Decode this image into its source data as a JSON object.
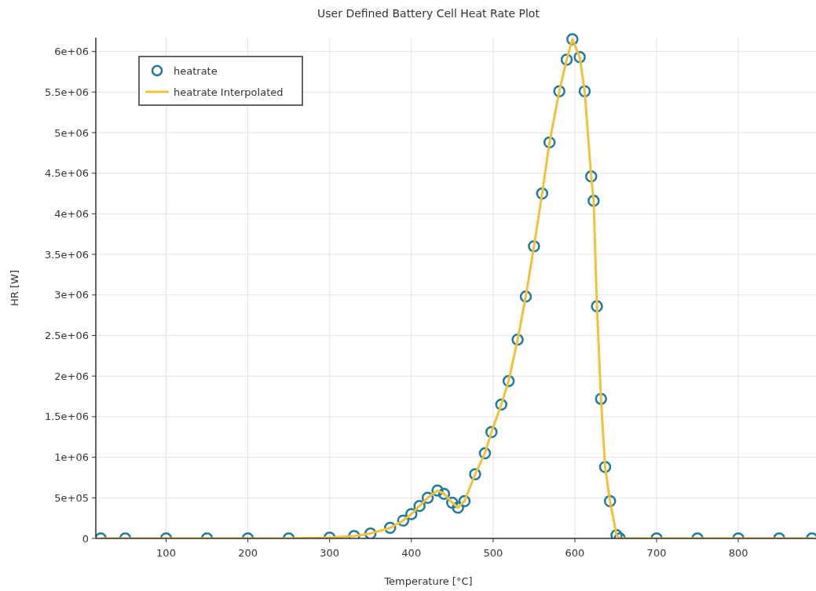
{
  "chart_data": {
    "type": "scatter",
    "title": "User Defined Battery Cell Heat Rate Plot",
    "xlabel": "Temperature [°C]",
    "ylabel": "HR [W]",
    "x": [
      20,
      50,
      100,
      150,
      200,
      250,
      300,
      330,
      350,
      374,
      390,
      400,
      410,
      420,
      432,
      440,
      450,
      457,
      465,
      478,
      490,
      498,
      510,
      519,
      530,
      540,
      550,
      560,
      569,
      581,
      590,
      597,
      606,
      612,
      620,
      623,
      627,
      632,
      637,
      643,
      651,
      655,
      700,
      750,
      800,
      850,
      890
    ],
    "series": [
      {
        "name": "heatrate",
        "marker": "circle",
        "color": "#1f7a9c",
        "values": [
          0,
          0,
          0,
          0,
          0,
          0,
          10000,
          30000,
          60000,
          130000,
          220000,
          300000,
          400000,
          500000,
          590000,
          550000,
          440000,
          380000,
          460000,
          790000,
          1050000,
          1310000,
          1650000,
          1940000,
          2450000,
          2980000,
          3600000,
          4250000,
          4880000,
          5510000,
          5900000,
          6150000,
          5930000,
          5510000,
          4460000,
          4160000,
          2860000,
          1720000,
          880000,
          460000,
          40000,
          0,
          0,
          0,
          0,
          0,
          0
        ]
      },
      {
        "name": "heatrate Interpolated",
        "type": "line",
        "line_style": "solid",
        "color": "#f0c23c",
        "values": [
          0,
          0,
          0,
          0,
          0,
          0,
          10000,
          30000,
          60000,
          130000,
          220000,
          300000,
          400000,
          500000,
          590000,
          550000,
          440000,
          380000,
          460000,
          790000,
          1050000,
          1310000,
          1650000,
          1940000,
          2450000,
          2980000,
          3600000,
          4250000,
          4880000,
          5510000,
          5900000,
          6150000,
          5930000,
          5510000,
          4460000,
          4160000,
          2860000,
          1720000,
          880000,
          460000,
          40000,
          0,
          0,
          0,
          0,
          0,
          0
        ]
      }
    ],
    "xlim": [
      14,
      895
    ],
    "xticks": [
      100,
      200,
      300,
      400,
      500,
      600,
      700,
      800
    ],
    "ylim": [
      0,
      6170000
    ],
    "yticks": [
      {
        "value": 0,
        "label": "0"
      },
      {
        "value": 500000,
        "label": "5e+05"
      },
      {
        "value": 1000000,
        "label": "1e+06"
      },
      {
        "value": 1500000,
        "label": "1.5e+06"
      },
      {
        "value": 2000000,
        "label": "2e+06"
      },
      {
        "value": 2500000,
        "label": "2.5e+06"
      },
      {
        "value": 3000000,
        "label": "3e+06"
      },
      {
        "value": 3500000,
        "label": "3.5e+06"
      },
      {
        "value": 4000000,
        "label": "4e+06"
      },
      {
        "value": 4500000,
        "label": "4.5e+06"
      },
      {
        "value": 5000000,
        "label": "5e+06"
      },
      {
        "value": 5500000,
        "label": "5.5e+06"
      },
      {
        "value": 6000000,
        "label": "6e+06"
      }
    ],
    "grid": true,
    "legend": "top left"
  }
}
